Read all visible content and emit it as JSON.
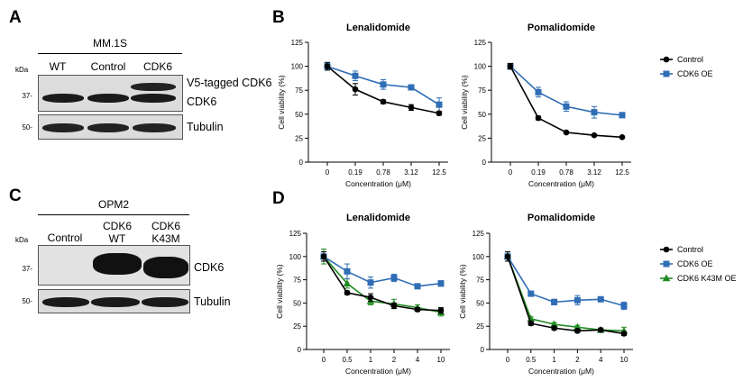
{
  "panels": {
    "A": {
      "letter": "A",
      "cell_line": "MM.1S",
      "kda_label": "kDa",
      "lanes": [
        "WT",
        "Control",
        "CDK6"
      ],
      "blots": [
        {
          "marker": "37-",
          "labels": [
            "V5-tagged CDK6",
            "CDK6"
          ]
        },
        {
          "marker": "50-",
          "labels": [
            "Tubulin"
          ]
        }
      ]
    },
    "B": {
      "letter": "B"
    },
    "C": {
      "letter": "C",
      "cell_line": "OPM2",
      "kda_label": "kDa",
      "lanes": [
        [
          "Control"
        ],
        [
          "CDK6",
          "WT"
        ],
        [
          "CDK6",
          "K43M"
        ]
      ],
      "blots": [
        {
          "marker": "37-",
          "labels": [
            "CDK6"
          ]
        },
        {
          "marker": "50-",
          "labels": [
            "Tubulin"
          ]
        }
      ]
    },
    "D": {
      "letter": "D"
    }
  },
  "colors": {
    "control": "#000000",
    "cdk6_oe": "#2f6db5",
    "k43m": "#1f8a1f",
    "blot_bg": "#dcdcdc",
    "band": "#1a1a1a"
  },
  "chart_data": [
    {
      "id": "B-left",
      "type": "line",
      "title": "Lenalidomide",
      "xlabel": "Concentration (μM)",
      "ylabel": "Cell viability (%)",
      "categories": [
        "0",
        "0.19",
        "0.78",
        "3.12",
        "12.5"
      ],
      "ylim": [
        0,
        125
      ],
      "yticks": [
        0,
        25,
        50,
        75,
        100,
        125
      ],
      "series": [
        {
          "name": "Control",
          "color": "#000000",
          "marker": "circle",
          "values": [
            100,
            76,
            63,
            57,
            51
          ],
          "errors": [
            4,
            6,
            2,
            3,
            2
          ]
        },
        {
          "name": "CDK6 OE",
          "color": "#2f6db5",
          "marker": "square",
          "values": [
            100,
            90,
            81,
            78,
            60
          ],
          "errors": [
            4,
            5,
            5,
            2,
            7
          ]
        }
      ]
    },
    {
      "id": "B-right",
      "type": "line",
      "title": "Pomalidomide",
      "xlabel": "Concentration (μM)",
      "ylabel": "Cell viability (%)",
      "categories": [
        "0",
        "0.19",
        "0.78",
        "3.12",
        "12.5"
      ],
      "ylim": [
        0,
        125
      ],
      "yticks": [
        0,
        25,
        50,
        75,
        100,
        125
      ],
      "legend": [
        "Control",
        "CDK6 OE"
      ],
      "series": [
        {
          "name": "Control",
          "color": "#000000",
          "marker": "circle",
          "values": [
            100,
            46,
            31,
            28,
            26
          ],
          "errors": [
            3,
            2,
            1,
            1,
            1
          ]
        },
        {
          "name": "CDK6 OE",
          "color": "#2f6db5",
          "marker": "square",
          "values": [
            100,
            73,
            58,
            52,
            49
          ],
          "errors": [
            3,
            5,
            5,
            6,
            2
          ]
        }
      ]
    },
    {
      "id": "D-left",
      "type": "line",
      "title": "Lenalidomide",
      "xlabel": "Concentration (μM)",
      "ylabel": "Cell viability (%)",
      "categories": [
        "0",
        "0.5",
        "1",
        "2",
        "4",
        "10"
      ],
      "ylim": [
        0,
        125
      ],
      "yticks": [
        0,
        25,
        50,
        75,
        100,
        125
      ],
      "series": [
        {
          "name": "Control",
          "color": "#000000",
          "marker": "circle",
          "values": [
            100,
            61,
            56,
            47,
            43,
            42
          ],
          "errors": [
            5,
            2,
            4,
            3,
            2,
            3
          ]
        },
        {
          "name": "CDK6 OE",
          "color": "#2f6db5",
          "marker": "square",
          "values": [
            100,
            84,
            72,
            77,
            68,
            71
          ],
          "errors": [
            5,
            8,
            6,
            4,
            2,
            3
          ]
        },
        {
          "name": "CDK6 K43M OE",
          "color": "#1f8a1f",
          "marker": "triangle",
          "values": [
            100,
            71,
            52,
            49,
            45,
            40
          ],
          "errors": [
            8,
            5,
            4,
            5,
            3,
            4
          ]
        }
      ]
    },
    {
      "id": "D-right",
      "type": "line",
      "title": "Pomalidomide",
      "xlabel": "Concentration (μM)",
      "ylabel": "Cell viability (%)",
      "categories": [
        "0",
        "0.5",
        "1",
        "2",
        "4",
        "10"
      ],
      "ylim": [
        0,
        125
      ],
      "yticks": [
        0,
        25,
        50,
        75,
        100,
        125
      ],
      "legend": [
        "Control",
        "CDK6 OE",
        "CDK6 K43M OE"
      ],
      "series": [
        {
          "name": "Control",
          "color": "#000000",
          "marker": "circle",
          "values": [
            100,
            28,
            23,
            20,
            21,
            17
          ],
          "errors": [
            5,
            2,
            2,
            2,
            2,
            2
          ]
        },
        {
          "name": "CDK6 OE",
          "color": "#2f6db5",
          "marker": "square",
          "values": [
            100,
            60,
            51,
            53,
            54,
            47
          ],
          "errors": [
            5,
            2,
            3,
            5,
            2,
            4
          ]
        },
        {
          "name": "CDK6 K43M OE",
          "color": "#1f8a1f",
          "marker": "triangle",
          "values": [
            100,
            33,
            27,
            24,
            21,
            20
          ],
          "errors": [
            5,
            2,
            2,
            2,
            2,
            4
          ]
        }
      ]
    }
  ]
}
